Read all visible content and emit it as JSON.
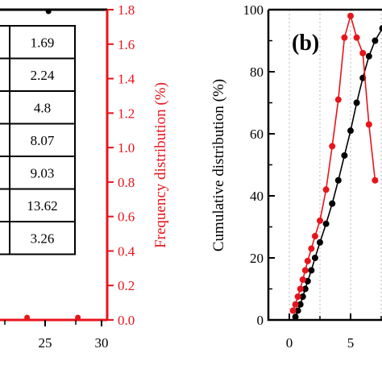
{
  "chart_data": [
    {
      "type": "table",
      "panel": "a",
      "table_values": [
        "1.69",
        "2.24",
        "4.8",
        "8.07",
        "9.03",
        "13.62",
        "3.26"
      ],
      "x_ticks": [
        "25",
        "30"
      ],
      "right_axis": {
        "label": "Frequency distribution (%)",
        "ticks": [
          "0.0",
          "0.2",
          "0.4",
          "0.6",
          "0.8",
          "1.0",
          "1.2",
          "1.4",
          "1.6",
          "1.8"
        ],
        "ylim": [
          0,
          1.8
        ],
        "color": "#e8141b"
      },
      "x_range": [
        20,
        30
      ],
      "visible_points": {
        "red": [
          {
            "x": 23.4,
            "y": 0.0
          },
          {
            "x": 27.9,
            "y": 0.0
          }
        ],
        "black": [
          {
            "x": 25.3,
            "y": 1.8
          }
        ]
      }
    },
    {
      "type": "line",
      "panel": "b",
      "panel_label": "(b)",
      "xlim": [
        -1,
        8
      ],
      "ylim": [
        0,
        100
      ],
      "x_ticks": [
        "0",
        "5"
      ],
      "y_ticks": [
        "0",
        "20",
        "40",
        "60",
        "80",
        "100"
      ],
      "ylabel": "Cumulative distribution (%)",
      "grid": "vertical dotted",
      "series": [
        {
          "color": "#000000",
          "points": [
            {
              "x": 0.5,
              "y": 1
            },
            {
              "x": 0.7,
              "y": 3
            },
            {
              "x": 0.9,
              "y": 5
            },
            {
              "x": 1.1,
              "y": 7.5
            },
            {
              "x": 1.3,
              "y": 10
            },
            {
              "x": 1.5,
              "y": 12.5
            },
            {
              "x": 1.8,
              "y": 16
            },
            {
              "x": 2.1,
              "y": 20
            },
            {
              "x": 2.5,
              "y": 25
            },
            {
              "x": 3.0,
              "y": 31
            },
            {
              "x": 3.5,
              "y": 37.5
            },
            {
              "x": 4.0,
              "y": 45
            },
            {
              "x": 4.5,
              "y": 53
            },
            {
              "x": 5.0,
              "y": 61
            },
            {
              "x": 5.5,
              "y": 70
            },
            {
              "x": 6.0,
              "y": 78
            },
            {
              "x": 6.5,
              "y": 85
            },
            {
              "x": 7.0,
              "y": 90
            },
            {
              "x": 7.6,
              "y": 94
            }
          ]
        },
        {
          "color": "#e8141b",
          "points": [
            {
              "x": 0.3,
              "y": 3
            },
            {
              "x": 0.5,
              "y": 5
            },
            {
              "x": 0.7,
              "y": 7.5
            },
            {
              "x": 0.9,
              "y": 10
            },
            {
              "x": 1.1,
              "y": 13
            },
            {
              "x": 1.3,
              "y": 16
            },
            {
              "x": 1.5,
              "y": 19
            },
            {
              "x": 1.8,
              "y": 23
            },
            {
              "x": 2.1,
              "y": 27
            },
            {
              "x": 2.5,
              "y": 32
            },
            {
              "x": 3.0,
              "y": 42
            },
            {
              "x": 3.5,
              "y": 56
            },
            {
              "x": 4.0,
              "y": 71
            },
            {
              "x": 4.5,
              "y": 91
            },
            {
              "x": 5.0,
              "y": 98
            },
            {
              "x": 5.5,
              "y": 91
            },
            {
              "x": 6.0,
              "y": 86
            },
            {
              "x": 6.5,
              "y": 63
            },
            {
              "x": 7.0,
              "y": 45
            }
          ]
        }
      ]
    }
  ]
}
